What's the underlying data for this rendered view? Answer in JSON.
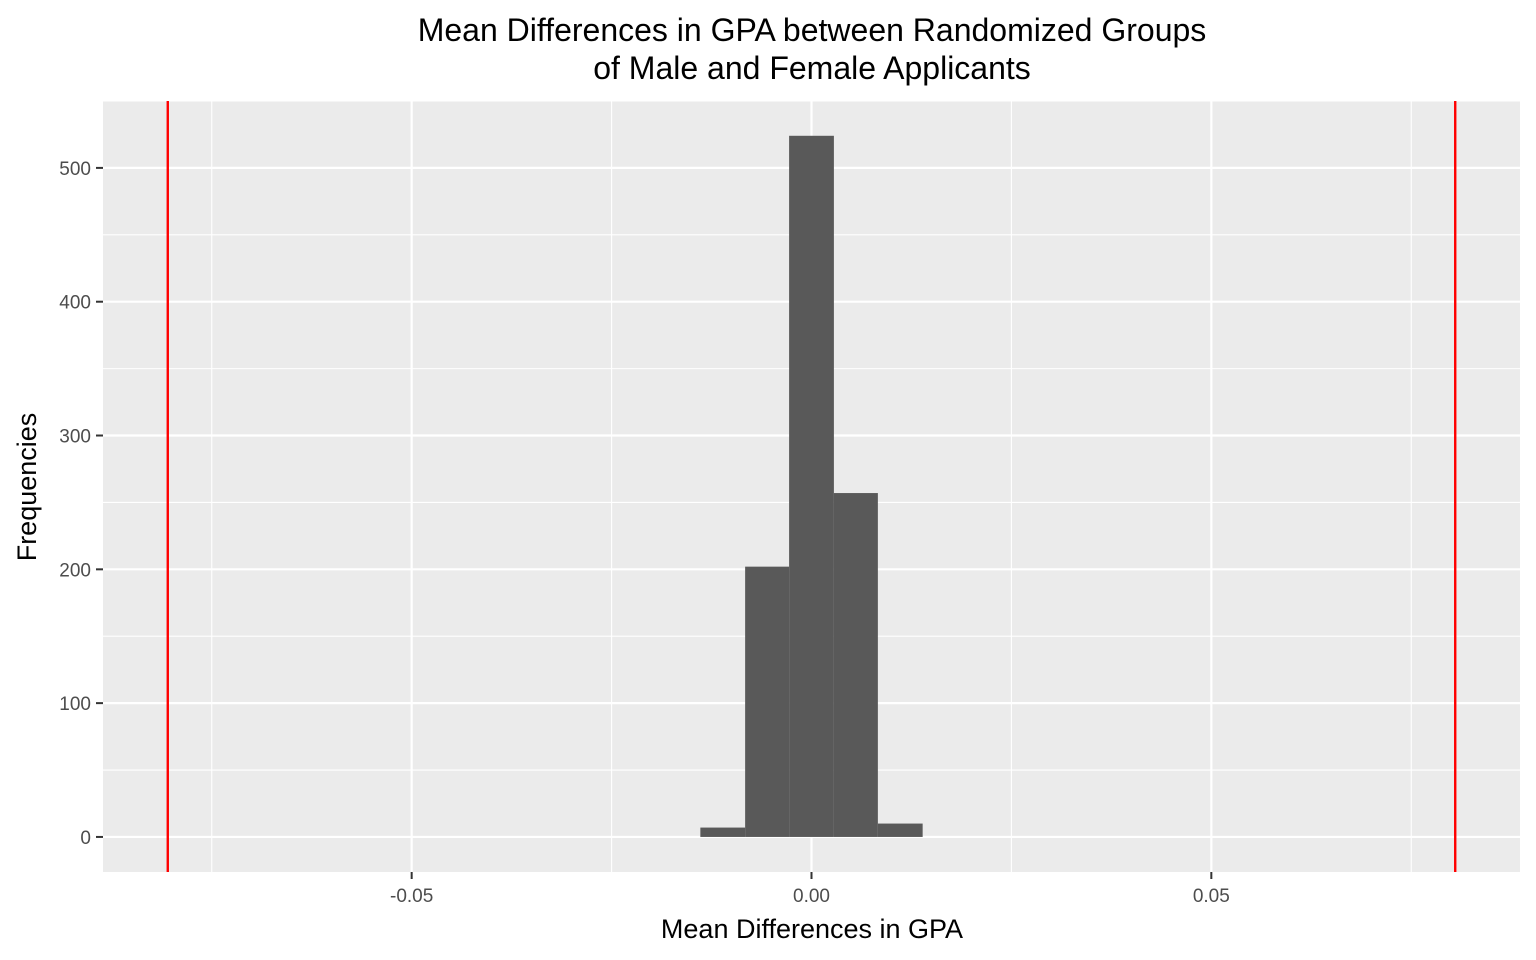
{
  "chart_data": {
    "type": "bar",
    "title_lines": [
      "Mean Differences in GPA between Randomized Groups",
      "of Male and Female Applicants"
    ],
    "xlabel": "Mean Differences in GPA",
    "ylabel": "Frequencies",
    "xlim": [
      -0.0886,
      0.0886
    ],
    "ylim": [
      -26.2,
      550
    ],
    "x_ticks": [
      {
        "value": -0.05,
        "label": "-0.05"
      },
      {
        "value": 0.0,
        "label": "0.00"
      },
      {
        "value": 0.05,
        "label": "0.05"
      }
    ],
    "y_ticks": [
      {
        "value": 0,
        "label": "0"
      },
      {
        "value": 100,
        "label": "100"
      },
      {
        "value": 200,
        "label": "200"
      },
      {
        "value": 300,
        "label": "300"
      },
      {
        "value": 400,
        "label": "400"
      },
      {
        "value": 500,
        "label": "500"
      }
    ],
    "bins": [
      {
        "x0": -0.0139,
        "x1": -0.0083,
        "count": 7
      },
      {
        "x0": -0.0083,
        "x1": -0.0028,
        "count": 202
      },
      {
        "x0": -0.0028,
        "x1": 0.0028,
        "count": 524
      },
      {
        "x0": 0.0028,
        "x1": 0.0083,
        "count": 257
      },
      {
        "x0": 0.0083,
        "x1": 0.0139,
        "count": 10
      }
    ],
    "reference_lines": [
      -0.0805,
      0.0805
    ],
    "grid": true,
    "colors": {
      "panel": "#ebebeb",
      "grid": "#ffffff",
      "bar": "#595959",
      "reference_line": "#ff0000"
    }
  }
}
